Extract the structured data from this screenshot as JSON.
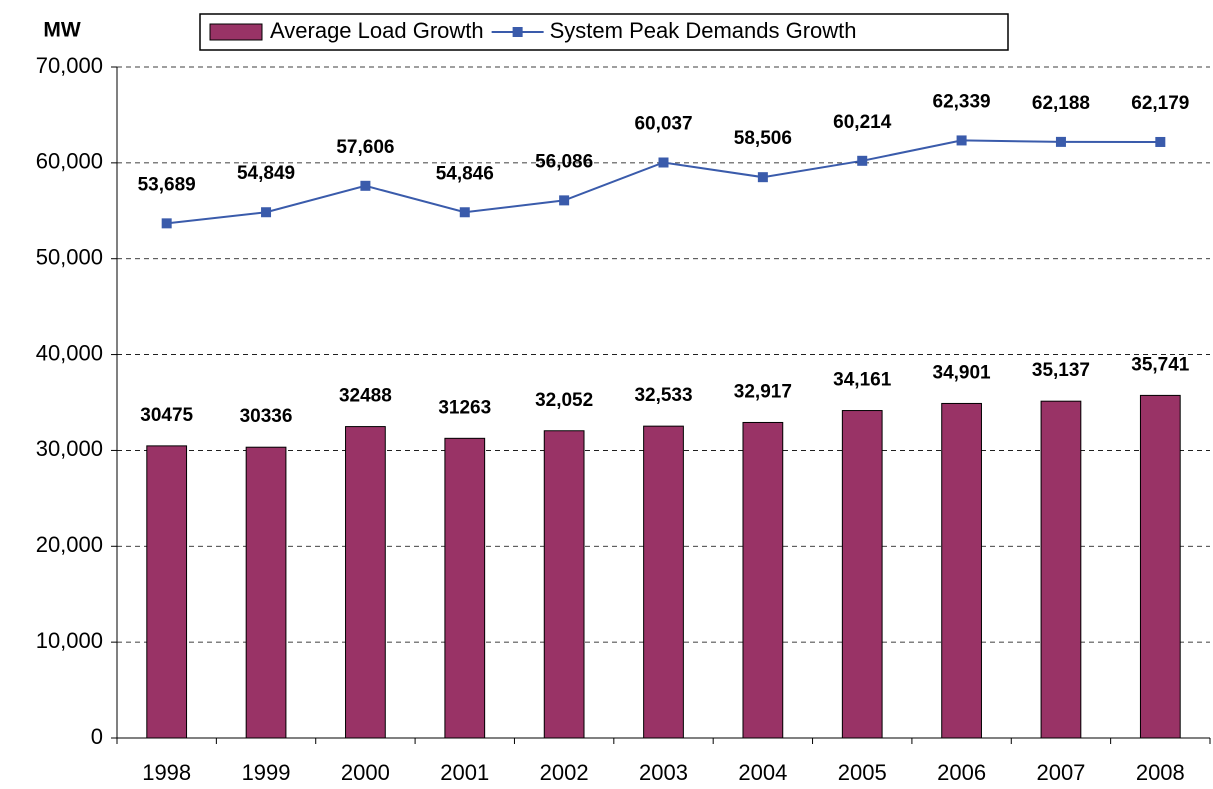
{
  "chart_data": {
    "type": "bar",
    "y_label": "MW",
    "categories": [
      "1998",
      "1999",
      "2000",
      "2001",
      "2002",
      "2003",
      "2004",
      "2005",
      "2006",
      "2007",
      "2008"
    ],
    "series": [
      {
        "name": "Average Load Growth",
        "type": "bar",
        "color": "#993366",
        "values": [
          30475,
          30336,
          32488,
          31263,
          32052,
          32533,
          32917,
          34161,
          34901,
          35137,
          35741
        ],
        "value_labels": [
          "30475",
          "30336",
          "32488",
          "31263",
          "32,052",
          "32,533",
          "32,917",
          "34,161",
          "34,901",
          "35,137",
          "35,741"
        ]
      },
      {
        "name": "System Peak Demands Growth",
        "type": "line",
        "color": "#3a5bab",
        "values": [
          53689,
          54849,
          57606,
          54846,
          56086,
          60037,
          58506,
          60214,
          62339,
          62188,
          62179
        ],
        "value_labels": [
          "53,689",
          "54,849",
          "57,606",
          "54,846",
          "56,086",
          "60,037",
          "58,506",
          "60,214",
          "62,339",
          "62,188",
          "62,179"
        ]
      }
    ],
    "ylim": [
      0,
      70000
    ],
    "yticks": [
      0,
      {
        "value": 10000,
        "label": "10,000"
      },
      {
        "value": 20000,
        "label": "20,000"
      },
      {
        "value": 30000,
        "label": "30,000"
      },
      {
        "value": 40000,
        "label": "40,000"
      },
      {
        "value": 50000,
        "label": "50,000"
      },
      {
        "value": 60000,
        "label": "60,000"
      },
      {
        "value": 70000,
        "label": "70,000"
      }
    ],
    "grid": true,
    "legend": "top"
  }
}
